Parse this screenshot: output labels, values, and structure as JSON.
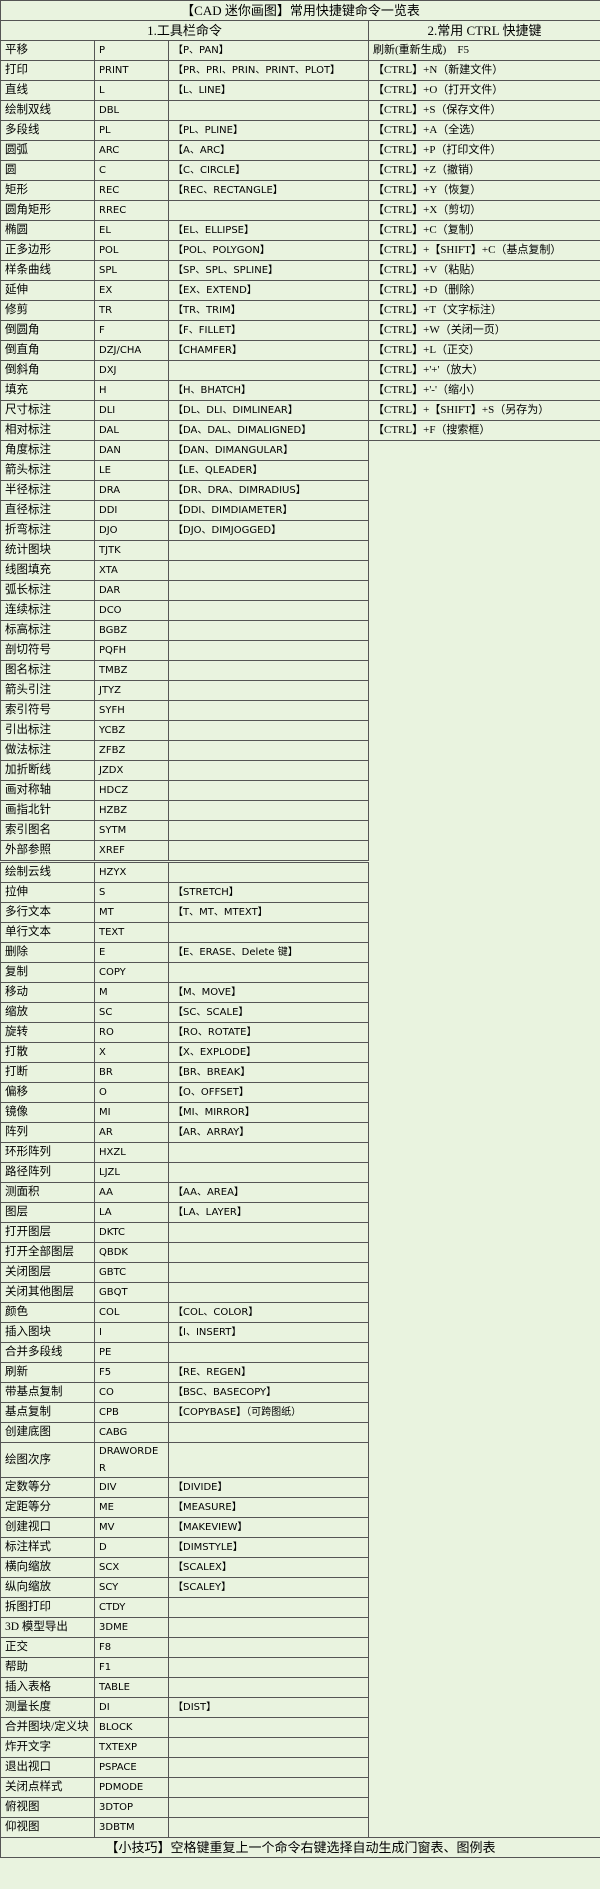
{
  "header": {
    "title": "【CAD 迷你画图】常用快捷键命令一览表",
    "col1": "1.工具栏命令",
    "col2": "2.常用 CTRL 快捷键"
  },
  "table": {
    "rows": [
      [
        "平移",
        "P",
        "【P、PAN】"
      ],
      [
        "打印",
        "PRINT",
        "【PR、PRI、PRIN、PRINT、PLOT】"
      ],
      [
        "直线",
        "L",
        "【L、LINE】"
      ],
      [
        "绘制双线",
        "DBL"
      ],
      [
        "多段线",
        "PL",
        "【PL、PLINE】"
      ],
      [
        "圆弧",
        "ARC",
        "【A、ARC】"
      ],
      [
        "圆",
        "C",
        "【C、CIRCLE】"
      ],
      [
        "矩形",
        "REC",
        "【REC、RECTANGLE】"
      ],
      [
        "圆角矩形",
        "RREC"
      ],
      [
        "椭圆",
        "EL",
        "【EL、ELLIPSE】"
      ],
      [
        "正多边形",
        "POL",
        "【POL、POLYGON】"
      ],
      [
        "样条曲线",
        "SPL",
        "【SP、SPL、SPLINE】"
      ],
      [
        "延伸",
        "EX",
        "【EX、EXTEND】"
      ],
      [
        "修剪",
        "TR",
        "【TR、TRIM】"
      ],
      [
        "倒圆角",
        "F",
        "【F、FILLET】"
      ],
      [
        "倒直角",
        "DZJ/CHA",
        "【CHAMFER】"
      ],
      [
        "倒斜角",
        "DXJ"
      ],
      [
        "填充",
        "H",
        "【H、BHATCH】"
      ],
      [
        "尺寸标注",
        "DLI",
        "【DL、DLI、DIMLINEAR】"
      ],
      [
        "相对标注",
        "DAL",
        "【DA、DAL、DIMALIGNED】"
      ],
      [
        "角度标注",
        "DAN",
        "【DAN、DIMANGULAR】"
      ],
      [
        "箭头标注",
        "LE",
        "【LE、QLEADER】"
      ],
      [
        "半径标注",
        "DRA",
        "【DR、DRA、DIMRADIUS】"
      ],
      [
        "直径标注",
        "DDI",
        "【DDI、DIMDIAMETER】"
      ],
      [
        "折弯标注",
        "DJO",
        "【DJO、DIMJOGGED】"
      ],
      [
        "统计图块",
        "TJTK"
      ],
      [
        "线图填充",
        "XTA"
      ],
      [
        "弧长标注",
        "DAR"
      ],
      [
        "连续标注",
        "DCO"
      ],
      [
        "标高标注",
        "BGBZ"
      ],
      [
        "剖切符号",
        "PQFH"
      ],
      [
        "图名标注",
        "TMBZ"
      ],
      [
        "箭头引注",
        "JTYZ"
      ],
      [
        "索引符号",
        "SYFH"
      ],
      [
        "引出标注",
        "YCBZ"
      ],
      [
        "做法标注",
        "ZFBZ"
      ],
      [
        "加折断线",
        "JZDX"
      ],
      [
        "画对称轴",
        "HDCZ"
      ],
      [
        "画指北针",
        "HZBZ"
      ],
      [
        "索引图名",
        "SYTM"
      ],
      [
        "外部参照",
        "XREF"
      ],
      [
        "绘制云线",
        "HZYX"
      ],
      [
        "拉伸",
        "S",
        "【STRETCH】"
      ],
      [
        "多行文本",
        "MT",
        "【T、MT、MTEXT】"
      ],
      [
        "单行文本",
        "TEXT"
      ],
      [
        "删除",
        "E",
        "【E、ERASE、Delete 键】"
      ],
      [
        "复制",
        "COPY"
      ],
      [
        "移动",
        "M",
        "【M、MOVE】"
      ],
      [
        "缩放",
        "SC",
        "【SC、SCALE】"
      ],
      [
        "旋转",
        "RO",
        "【RO、ROTATE】"
      ],
      [
        "打散",
        "X",
        "【X、EXPLODE】"
      ],
      [
        "打断",
        "BR",
        "【BR、BREAK】"
      ],
      [
        "偏移",
        "O",
        "【O、OFFSET】"
      ],
      [
        "镜像",
        "MI",
        "【MI、MIRROR】"
      ],
      [
        "阵列",
        "AR",
        "【AR、ARRAY】"
      ],
      [
        "环形阵列",
        "HXZL"
      ],
      [
        "路径阵列",
        "LJZL"
      ],
      [
        "测面积",
        "AA",
        "【AA、AREA】"
      ],
      [
        "图层",
        "LA",
        "【LA、LAYER】"
      ],
      [
        "打开图层",
        "DKTC"
      ],
      [
        "打开全部图层",
        "QBDK"
      ],
      [
        "关闭图层",
        "GBTC"
      ],
      [
        "关闭其他图层",
        "GBQT"
      ],
      [
        "颜色",
        "COL",
        "【COL、COLOR】"
      ],
      [
        "插入图块",
        "I",
        "【I、INSERT】"
      ],
      [
        "合并多段线",
        "PE"
      ],
      [
        "刷新",
        "F5",
        "【RE、REGEN】"
      ],
      [
        "带基点复制",
        "CO",
        "【BSC、BASECOPY】"
      ],
      [
        "基点复制",
        "CPB",
        "【COPYBASE】（可跨图纸）"
      ],
      [
        "创建底图",
        "CABG"
      ],
      [
        "绘图次序",
        "DRAWORDER"
      ],
      [
        "定数等分",
        "DIV",
        "【DIVIDE】"
      ],
      [
        "定距等分",
        "ME",
        "【MEASURE】"
      ],
      [
        "创建视口",
        "MV",
        "【MAKEVIEW】"
      ],
      [
        "标注样式",
        "D",
        "【DIMSTYLE】"
      ],
      [
        "横向缩放",
        "SCX",
        "【SCALEX】"
      ],
      [
        "纵向缩放",
        "SCY",
        "【SCALEY】"
      ],
      [
        "拆图打印",
        "CTDY"
      ],
      [
        "3D 模型导出",
        "3DME"
      ],
      [
        "正交",
        "F8"
      ],
      [
        "帮助",
        "F1"
      ],
      [
        "插入表格",
        "TABLE"
      ],
      [
        "测量长度",
        "DI",
        "【DIST】"
      ],
      [
        "合并图块/定义块",
        "BLOCK"
      ],
      [
        "炸开文字",
        "TXTEXP"
      ],
      [
        "退出视口",
        "PSPACE"
      ],
      [
        "关闭点样式",
        "PDMODE"
      ],
      [
        "俯视图",
        "3DTOP"
      ],
      [
        "仰视图",
        "3DBTM"
      ]
    ],
    "shortcuts": [
      "刷新(重新生成)　F5",
      "【CTRL】+N（新建文件）",
      "【CTRL】+O（打开文件）",
      "【CTRL】+S（保存文件）",
      "【CTRL】+A（全选）",
      "【CTRL】+P（打印文件）",
      "【CTRL】+Z（撤销）",
      "【CTRL】+Y（恢复）",
      "【CTRL】+X（剪切）",
      "【CTRL】+C（复制）",
      "【CTRL】+【SHIFT】+C（基点复制）",
      "【CTRL】+V（粘贴）",
      "【CTRL】+D（删除）",
      "【CTRL】+T（文字标注）",
      "【CTRL】+W（关闭一页）",
      "【CTRL】+L（正交）",
      "【CTRL】+'+'（放大）",
      "【CTRL】+'-'（缩小）",
      "【CTRL】+【SHIFT】+S（另存为）",
      "【CTRL】+F（搜索框）"
    ]
  },
  "footer": {
    "tip": "【小技巧】空格键重复上一个命令右键选择自动生成门窗表、图例表"
  }
}
